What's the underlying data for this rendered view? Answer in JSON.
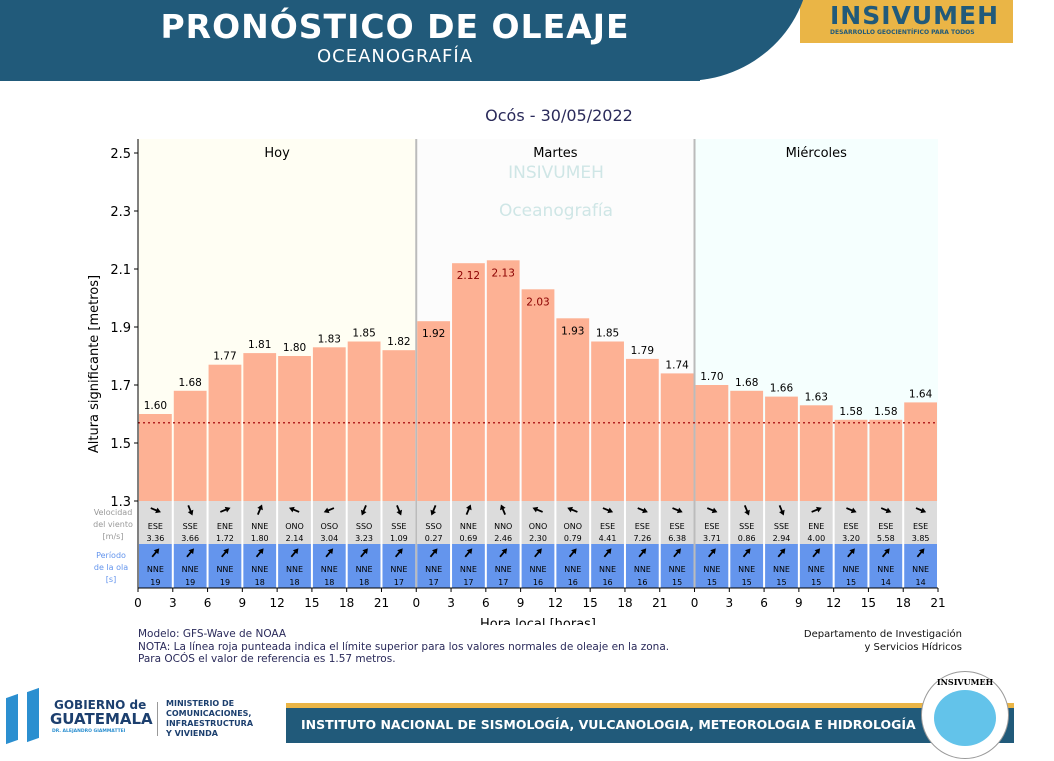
{
  "header": {
    "title": "PRONÓSTICO DE OLEAJE",
    "subtitle": "OCEANOGRAFÍA",
    "logo": "INSIVUMEH",
    "logo_tagline": "DESARROLLO GEOCIENTÍFICO PARA TODOS"
  },
  "chart_data": {
    "type": "bar",
    "title": "Ocós  -  30/05/2022",
    "xlabel": "Hora local [horas]",
    "ylabel": "Altura significante [metros]",
    "ylim": [
      1.3,
      2.55
    ],
    "yticks": [
      "1.3",
      "1.5",
      "1.7",
      "1.9",
      "2.1",
      "2.3",
      "2.5"
    ],
    "xticks": [
      "0",
      "3",
      "6",
      "9",
      "12",
      "15",
      "18",
      "21",
      "0",
      "3",
      "6",
      "9",
      "12",
      "15",
      "18",
      "21",
      "0",
      "3",
      "6",
      "9",
      "12",
      "15",
      "18",
      "21"
    ],
    "days": [
      "Hoy",
      "Martes",
      "Miércoles"
    ],
    "watermark": [
      "INSIVUMEH",
      "Oceanografía"
    ],
    "reference_line": 1.57,
    "values": [
      1.6,
      1.68,
      1.77,
      1.81,
      1.8,
      1.83,
      1.85,
      1.82,
      1.92,
      2.12,
      2.13,
      2.03,
      1.93,
      1.85,
      1.79,
      1.74,
      1.7,
      1.68,
      1.66,
      1.63,
      1.58,
      1.58,
      1.64
    ],
    "wind_label": [
      "Velocidad",
      "del viento",
      "[m/s]"
    ],
    "wind_dir": [
      "ESE",
      "SSE",
      "ENE",
      "NNE",
      "ONO",
      "OSO",
      "SSO",
      "SSE",
      "SSO",
      "NNE",
      "NNO",
      "ONO",
      "ONO",
      "ESE",
      "ESE",
      "ESE",
      "ESE",
      "SSE",
      "SSE",
      "ENE",
      "ESE",
      "ESE",
      "ESE"
    ],
    "wind_speed": [
      "3.36",
      "3.66",
      "1.72",
      "1.80",
      "2.14",
      "3.04",
      "3.23",
      "1.09",
      "0.27",
      "0.69",
      "2.46",
      "2.30",
      "0.79",
      "4.41",
      "7.26",
      "6.38",
      "3.71",
      "0.86",
      "2.94",
      "4.00",
      "3.20",
      "5.58",
      "3.85"
    ],
    "wave_label": [
      "Período",
      "de la ola",
      "[s]"
    ],
    "wave_dir": [
      "NNE",
      "NNE",
      "NNE",
      "NNE",
      "NNE",
      "NNE",
      "NNE",
      "NNE",
      "NNE",
      "NNE",
      "NNE",
      "NNE",
      "NNE",
      "NNE",
      "NNE",
      "NNE",
      "NNE",
      "NNE",
      "NNE",
      "NNE",
      "NNE",
      "NNE",
      "NNE"
    ],
    "wave_period": [
      "19",
      "19",
      "19",
      "18",
      "18",
      "18",
      "18",
      "17",
      "17",
      "17",
      "17",
      "16",
      "16",
      "16",
      "16",
      "15",
      "15",
      "15",
      "15",
      "15",
      "15",
      "14",
      "14"
    ],
    "colors": {
      "bar": "#fdb194",
      "wind_bg": "#dcdcdc",
      "wave_bg": "#6495ed",
      "ref": "#b22222"
    }
  },
  "notes": [
    "Modelo: GFS-Wave de NOAA",
    "NOTA: La línea roja punteada indica el límite superior para los valores normales de oleaje en la zona.",
    "Para OCÓS el valor de referencia es 1.57 metros."
  ],
  "dept": [
    "Departamento de Investigación",
    "y Servicios Hídricos"
  ],
  "footer": {
    "gob1": "GOBIERNO de",
    "gob2": "GUATEMALA",
    "gob3": "DR. ALEJANDRO GIAMMATTEI",
    "min": [
      "MINISTERIO DE",
      "COMUNICACIONES,",
      "INFRAESTRUCTURA",
      "Y VIVIENDA"
    ],
    "institute": "INSTITUTO NACIONAL DE SISMOLOGÍA, VULCANOLOGIA, METEOROLOGIA E HIDROLOGÍA",
    "seal": "INSIVUMEH"
  }
}
